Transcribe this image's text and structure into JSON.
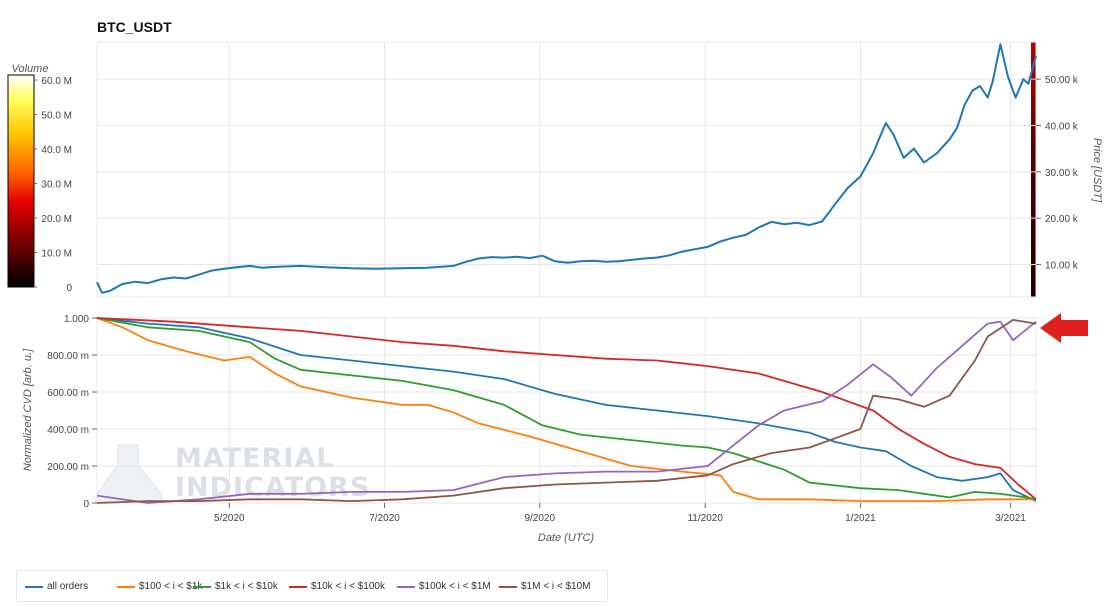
{
  "chart_data": [
    {
      "type": "line",
      "title": "BTC_USDT",
      "ylabel": "Price [USDT]",
      "ylim": [
        3000,
        58000
      ],
      "y_ticks": [
        10000,
        20000,
        30000,
        40000,
        50000
      ],
      "y_tick_labels": [
        "10.00 k",
        "20.00 k",
        "30.00 k",
        "40.00 k",
        "50.00 k"
      ],
      "x_range_days": [
        0,
        369
      ],
      "series": [
        {
          "name": "BTC price",
          "color": "#1f77b4",
          "points": [
            [
              0,
              6200
            ],
            [
              2,
              3900
            ],
            [
              5,
              4300
            ],
            [
              10,
              5800
            ],
            [
              15,
              6300
            ],
            [
              20,
              6000
            ],
            [
              25,
              6800
            ],
            [
              30,
              7200
            ],
            [
              35,
              7000
            ],
            [
              40,
              7800
            ],
            [
              45,
              8700
            ],
            [
              50,
              9100
            ],
            [
              55,
              9400
            ],
            [
              60,
              9700
            ],
            [
              65,
              9300
            ],
            [
              70,
              9500
            ],
            [
              75,
              9600
            ],
            [
              80,
              9700
            ],
            [
              90,
              9400
            ],
            [
              100,
              9200
            ],
            [
              110,
              9100
            ],
            [
              120,
              9200
            ],
            [
              130,
              9300
            ],
            [
              140,
              9700
            ],
            [
              145,
              10600
            ],
            [
              150,
              11300
            ],
            [
              155,
              11600
            ],
            [
              160,
              11500
            ],
            [
              165,
              11700
            ],
            [
              170,
              11400
            ],
            [
              175,
              11900
            ],
            [
              180,
              10700
            ],
            [
              185,
              10400
            ],
            [
              190,
              10700
            ],
            [
              195,
              10800
            ],
            [
              200,
              10600
            ],
            [
              205,
              10700
            ],
            [
              210,
              11000
            ],
            [
              215,
              11300
            ],
            [
              220,
              11500
            ],
            [
              225,
              12000
            ],
            [
              230,
              12800
            ],
            [
              235,
              13300
            ],
            [
              240,
              13800
            ],
            [
              245,
              15000
            ],
            [
              250,
              15800
            ],
            [
              255,
              16400
            ],
            [
              260,
              18000
            ],
            [
              265,
              19200
            ],
            [
              270,
              18700
            ],
            [
              275,
              19000
            ],
            [
              280,
              18500
            ],
            [
              285,
              19300
            ],
            [
              290,
              23000
            ],
            [
              295,
              26500
            ],
            [
              300,
              29000
            ],
            [
              305,
              34000
            ],
            [
              308,
              38000
            ],
            [
              310,
              40500
            ],
            [
              313,
              38000
            ],
            [
              317,
              33000
            ],
            [
              321,
              35000
            ],
            [
              325,
              32000
            ],
            [
              330,
              34000
            ],
            [
              335,
              37000
            ],
            [
              338,
              39500
            ],
            [
              341,
              44500
            ],
            [
              344,
              47500
            ],
            [
              347,
              48500
            ],
            [
              350,
              46000
            ],
            [
              352,
              49500
            ],
            [
              355,
              57500
            ],
            [
              358,
              50500
            ],
            [
              361,
              46000
            ],
            [
              364,
              50000
            ],
            [
              366,
              49000
            ],
            [
              369,
              55000
            ]
          ]
        }
      ]
    },
    {
      "type": "line",
      "xlabel": "Date (UTC)",
      "ylabel": "Normalized CVD [arb. u.]",
      "ylim": [
        0,
        1.0
      ],
      "y_ticks": [
        0,
        0.2,
        0.4,
        0.6,
        0.8,
        1.0
      ],
      "y_tick_labels": [
        "0",
        "200.00 m",
        "400.00 m",
        "600.00 m",
        "800.00 m",
        "1.000"
      ],
      "x_range_days": [
        0,
        369
      ],
      "x_ticks_days": [
        52,
        113,
        174,
        239,
        300,
        359
      ],
      "x_tick_labels": [
        "5/2020",
        "7/2020",
        "9/2020",
        "11/2020",
        "1/2021",
        "3/2021"
      ],
      "series": [
        {
          "name": "all orders",
          "color": "#1f77b4",
          "points": [
            [
              0,
              1.0
            ],
            [
              20,
              0.97
            ],
            [
              40,
              0.95
            ],
            [
              60,
              0.89
            ],
            [
              80,
              0.8
            ],
            [
              100,
              0.77
            ],
            [
              120,
              0.74
            ],
            [
              140,
              0.71
            ],
            [
              160,
              0.67
            ],
            [
              180,
              0.59
            ],
            [
              200,
              0.53
            ],
            [
              220,
              0.5
            ],
            [
              240,
              0.47
            ],
            [
              260,
              0.43
            ],
            [
              280,
              0.38
            ],
            [
              290,
              0.33
            ],
            [
              300,
              0.3
            ],
            [
              310,
              0.28
            ],
            [
              320,
              0.2
            ],
            [
              330,
              0.14
            ],
            [
              340,
              0.12
            ],
            [
              350,
              0.14
            ],
            [
              355,
              0.16
            ],
            [
              360,
              0.07
            ],
            [
              369,
              0.01
            ]
          ]
        },
        {
          "name": "$100 < i < $1k",
          "color": "#ff7f0e",
          "points": [
            [
              0,
              1.0
            ],
            [
              10,
              0.95
            ],
            [
              20,
              0.88
            ],
            [
              35,
              0.82
            ],
            [
              50,
              0.77
            ],
            [
              60,
              0.79
            ],
            [
              70,
              0.7
            ],
            [
              80,
              0.63
            ],
            [
              100,
              0.57
            ],
            [
              120,
              0.53
            ],
            [
              130,
              0.53
            ],
            [
              140,
              0.49
            ],
            [
              150,
              0.43
            ],
            [
              170,
              0.36
            ],
            [
              190,
              0.28
            ],
            [
              210,
              0.2
            ],
            [
              230,
              0.17
            ],
            [
              245,
              0.15
            ],
            [
              250,
              0.06
            ],
            [
              260,
              0.02
            ],
            [
              280,
              0.02
            ],
            [
              300,
              0.01
            ],
            [
              330,
              0.01
            ],
            [
              350,
              0.02
            ],
            [
              369,
              0.02
            ]
          ]
        },
        {
          "name": "$1k < i < $10k",
          "color": "#2ca02c",
          "points": [
            [
              0,
              1.0
            ],
            [
              20,
              0.95
            ],
            [
              40,
              0.93
            ],
            [
              60,
              0.87
            ],
            [
              70,
              0.78
            ],
            [
              80,
              0.72
            ],
            [
              100,
              0.69
            ],
            [
              120,
              0.66
            ],
            [
              140,
              0.61
            ],
            [
              160,
              0.53
            ],
            [
              175,
              0.42
            ],
            [
              190,
              0.37
            ],
            [
              210,
              0.34
            ],
            [
              230,
              0.31
            ],
            [
              240,
              0.3
            ],
            [
              250,
              0.27
            ],
            [
              270,
              0.18
            ],
            [
              280,
              0.11
            ],
            [
              300,
              0.08
            ],
            [
              315,
              0.07
            ],
            [
              325,
              0.05
            ],
            [
              335,
              0.03
            ],
            [
              345,
              0.06
            ],
            [
              355,
              0.05
            ],
            [
              365,
              0.03
            ],
            [
              369,
              0.02
            ]
          ]
        },
        {
          "name": "$10k < i < $100k",
          "color": "#d62728",
          "points": [
            [
              0,
              1.0
            ],
            [
              30,
              0.98
            ],
            [
              60,
              0.95
            ],
            [
              80,
              0.93
            ],
            [
              100,
              0.9
            ],
            [
              120,
              0.87
            ],
            [
              140,
              0.85
            ],
            [
              160,
              0.82
            ],
            [
              180,
              0.8
            ],
            [
              200,
              0.78
            ],
            [
              220,
              0.77
            ],
            [
              240,
              0.74
            ],
            [
              260,
              0.7
            ],
            [
              270,
              0.66
            ],
            [
              285,
              0.6
            ],
            [
              295,
              0.55
            ],
            [
              305,
              0.5
            ],
            [
              315,
              0.4
            ],
            [
              325,
              0.32
            ],
            [
              335,
              0.25
            ],
            [
              345,
              0.21
            ],
            [
              355,
              0.19
            ],
            [
              362,
              0.1
            ],
            [
              369,
              0.02
            ]
          ]
        },
        {
          "name": "$100k < i < $1M",
          "color": "#9467bd",
          "points": [
            [
              0,
              0.04
            ],
            [
              20,
              0.0
            ],
            [
              40,
              0.02
            ],
            [
              60,
              0.05
            ],
            [
              80,
              0.05
            ],
            [
              100,
              0.06
            ],
            [
              120,
              0.06
            ],
            [
              140,
              0.07
            ],
            [
              160,
              0.14
            ],
            [
              180,
              0.16
            ],
            [
              200,
              0.17
            ],
            [
              220,
              0.17
            ],
            [
              240,
              0.2
            ],
            [
              250,
              0.31
            ],
            [
              260,
              0.42
            ],
            [
              270,
              0.5
            ],
            [
              285,
              0.55
            ],
            [
              295,
              0.64
            ],
            [
              305,
              0.75
            ],
            [
              312,
              0.68
            ],
            [
              320,
              0.58
            ],
            [
              330,
              0.73
            ],
            [
              340,
              0.85
            ],
            [
              350,
              0.97
            ],
            [
              355,
              0.98
            ],
            [
              360,
              0.88
            ],
            [
              369,
              0.98
            ]
          ]
        },
        {
          "name": "$1M < i < $10M",
          "color": "#8c564b",
          "points": [
            [
              0,
              0.0
            ],
            [
              20,
              0.01
            ],
            [
              40,
              0.01
            ],
            [
              60,
              0.02
            ],
            [
              80,
              0.02
            ],
            [
              100,
              0.01
            ],
            [
              120,
              0.02
            ],
            [
              140,
              0.04
            ],
            [
              160,
              0.08
            ],
            [
              180,
              0.1
            ],
            [
              200,
              0.11
            ],
            [
              220,
              0.12
            ],
            [
              240,
              0.15
            ],
            [
              250,
              0.21
            ],
            [
              265,
              0.27
            ],
            [
              280,
              0.3
            ],
            [
              290,
              0.35
            ],
            [
              300,
              0.4
            ],
            [
              305,
              0.58
            ],
            [
              315,
              0.56
            ],
            [
              325,
              0.52
            ],
            [
              335,
              0.58
            ],
            [
              345,
              0.77
            ],
            [
              350,
              0.9
            ],
            [
              360,
              0.99
            ],
            [
              369,
              0.97
            ]
          ]
        }
      ]
    },
    {
      "type": "heatmap",
      "title": "Volume",
      "ylim": [
        0,
        60000000
      ],
      "y_ticks": [
        0,
        10000000,
        20000000,
        30000000,
        40000000,
        50000000,
        60000000
      ],
      "y_tick_labels": [
        "0",
        "10.0 M",
        "20.0 M",
        "30.0 M",
        "40.0 M",
        "50.0 M",
        "60.0 M"
      ]
    }
  ],
  "legend": {
    "items": [
      {
        "label": "all orders",
        "color": "#1f77b4"
      },
      {
        "label": "$100 < i < $1k",
        "color": "#ff7f0e"
      },
      {
        "label": "$1k < i < $10k",
        "color": "#2ca02c"
      },
      {
        "label": "$10k < i < $100k",
        "color": "#d62728"
      },
      {
        "label": "$100k < i < $1M",
        "color": "#9467bd"
      },
      {
        "label": "$1M < i < $10M",
        "color": "#8c564b"
      }
    ]
  },
  "watermark": {
    "line1": "MATERIAL",
    "line2": "INDICATORS"
  },
  "colors": {
    "arrow": "#e02020",
    "grid": "#e6e6e6"
  }
}
